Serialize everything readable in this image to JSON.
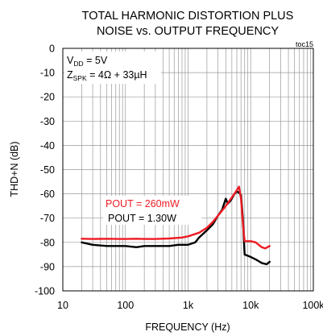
{
  "chart_data": {
    "type": "line",
    "title": "TOTAL HARMONIC DISTORTION PLUS NOISE vs. OUTPUT FREQUENCY",
    "title_lines": [
      "TOTAL HARMONIC DISTORTION PLUS",
      "NOISE vs. OUTPUT FREQUENCY"
    ],
    "code": "toc15",
    "xlabel": "FREQUENCY (Hz)",
    "ylabel": "THD+N (dB)",
    "x_scale": "log",
    "xlim": [
      10,
      100000
    ],
    "ylim": [
      -100,
      0
    ],
    "x_ticks": [
      10,
      100,
      1000,
      10000,
      100000
    ],
    "x_tick_labels": [
      "10",
      "100",
      "1k",
      "10k",
      "100k"
    ],
    "y_ticks": [
      0,
      -10,
      -20,
      -30,
      -40,
      -50,
      -60,
      -70,
      -80,
      -90,
      -100
    ],
    "y_tick_labels": [
      "0",
      "-10",
      "-20",
      "-30",
      "-40",
      "-50",
      "-60",
      "-70",
      "-80",
      "-90",
      "-100"
    ],
    "grid": true,
    "conditions": [
      {
        "main": "V",
        "sub": "DD",
        "rest": " = 5V"
      },
      {
        "main": "Z",
        "sub": "SPK",
        "rest": " = 4Ω + 33µH"
      }
    ],
    "series": [
      {
        "name": "POUT = 260mW",
        "color": "#ee1c24",
        "x": [
          20,
          30,
          50,
          80,
          100,
          150,
          200,
          300,
          500,
          800,
          1000,
          1500,
          2000,
          2500,
          3000,
          4000,
          5000,
          6000,
          6500,
          7000,
          7500,
          8000,
          10000,
          12000,
          15000,
          17000,
          20000
        ],
        "y": [
          -78.5,
          -78.6,
          -78.5,
          -78.6,
          -78.6,
          -78.5,
          -78.6,
          -78.6,
          -78.4,
          -78.0,
          -77.5,
          -76.0,
          -74.0,
          -71.5,
          -69.0,
          -65.0,
          -61.5,
          -58.5,
          -57.0,
          -62.0,
          -72.0,
          -79.5,
          -79.5,
          -80.0,
          -82.0,
          -82.5,
          -81.5
        ]
      },
      {
        "name": "POUT = 1.30W",
        "color": "#000000",
        "x": [
          20,
          30,
          50,
          80,
          100,
          150,
          200,
          300,
          500,
          700,
          1000,
          1300,
          1500,
          2000,
          2500,
          3000,
          3500,
          4000,
          4300,
          4700,
          5000,
          5500,
          6000,
          6500,
          7000,
          7500,
          8000,
          10000,
          12000,
          15000,
          18000,
          20000
        ],
        "y": [
          -80.0,
          -81.0,
          -81.5,
          -81.5,
          -81.5,
          -82.0,
          -81.5,
          -81.5,
          -81.5,
          -81.0,
          -81.0,
          -80.0,
          -78.0,
          -75.0,
          -72.5,
          -69.0,
          -66.5,
          -62.0,
          -64.0,
          -63.0,
          -62.0,
          -60.0,
          -59.0,
          -59.5,
          -60.5,
          -70.0,
          -85.0,
          -86.0,
          -87.0,
          -88.5,
          -89.0,
          -88.0
        ]
      }
    ]
  }
}
